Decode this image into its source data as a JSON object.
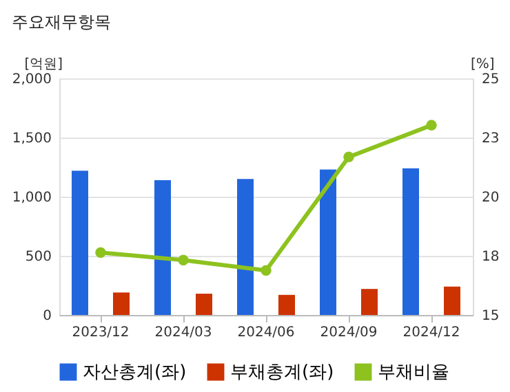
{
  "chart_data": {
    "type": "bar",
    "title": "주요재무항목",
    "categories": [
      "2023/12",
      "2024/03",
      "2024/06",
      "2024/09",
      "2024/12"
    ],
    "series": [
      {
        "name": "자산총계(좌)",
        "color": "#2266dd",
        "values": [
          1220,
          1140,
          1150,
          1230,
          1240
        ]
      },
      {
        "name": "부채총계(좌)",
        "color": "#cc3300",
        "values": [
          190,
          180,
          170,
          220,
          240
        ]
      },
      {
        "name": "부채비율",
        "color": "#8dc21f",
        "type": "line",
        "axis": "y2",
        "marker": "circle",
        "line_style": "solid",
        "values": [
          17.64,
          17.32,
          16.88,
          21.68,
          23.02
        ]
      }
    ],
    "ylabel": "[억원]",
    "y2label": "[%]",
    "ylim": [
      0,
      2000
    ],
    "yticks": [
      0,
      500,
      {
        "value": 1000,
        "label": "1,000"
      },
      {
        "value": 1500,
        "label": "1,500"
      },
      {
        "value": 2000,
        "label": "2,000"
      }
    ],
    "y2lim": [
      15,
      25
    ],
    "y2ticks": [
      15,
      {
        "value": 17.5,
        "label": "18"
      },
      20,
      {
        "value": 22.5,
        "label": "23"
      },
      25
    ],
    "grid": "y",
    "legend": "bottom"
  }
}
